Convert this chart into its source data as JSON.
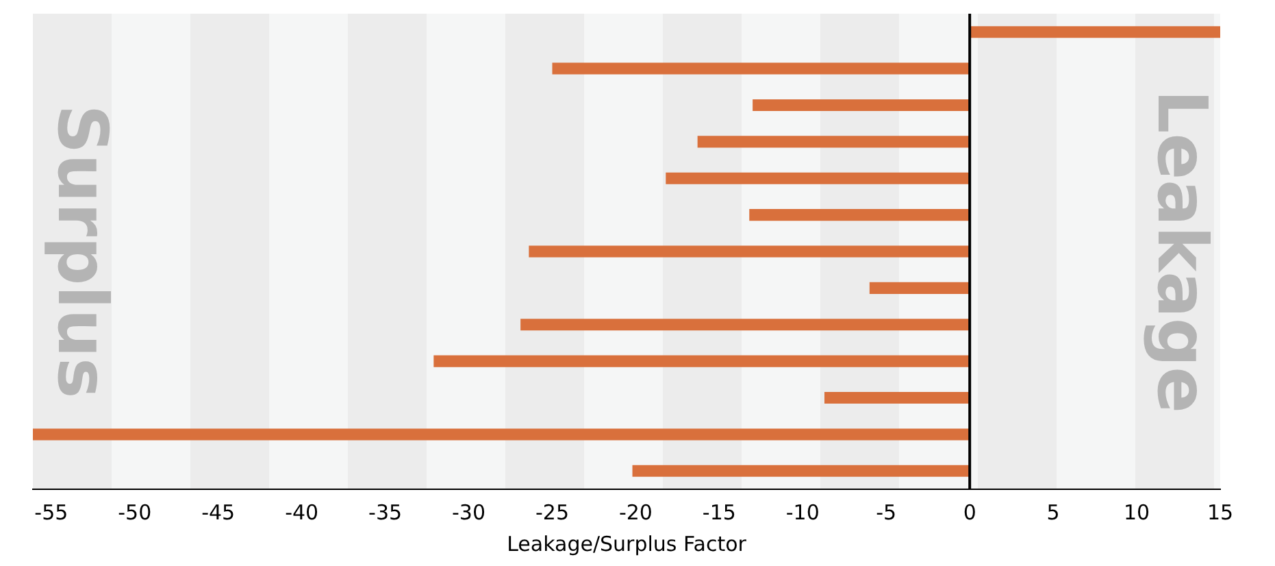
{
  "chart_data": {
    "type": "bar",
    "orientation": "horizontal",
    "xlabel": "Leakage/Surplus Factor",
    "categories": [
      null,
      null,
      null,
      null,
      null,
      null,
      null,
      null,
      null,
      null,
      null,
      null,
      null
    ],
    "values": [
      15,
      -25,
      -13,
      -16.3,
      -18.2,
      -13.2,
      -26.4,
      -6,
      -26.9,
      -32.1,
      -8.7,
      -56.1,
      -20.2
    ],
    "color": "#d9703c",
    "xlim": [
      -56.1,
      15
    ],
    "xticks": [
      -55,
      -50,
      -45,
      -40,
      -35,
      -30,
      -25,
      -20,
      -15,
      -10,
      -5,
      0,
      5,
      10,
      15
    ],
    "grid": false,
    "tick_labels": "x",
    "ref_lines": [
      {
        "axis": "x",
        "value": 0,
        "color": "#000000"
      }
    ],
    "annotations": [
      "Surplus",
      "Leakage"
    ]
  }
}
